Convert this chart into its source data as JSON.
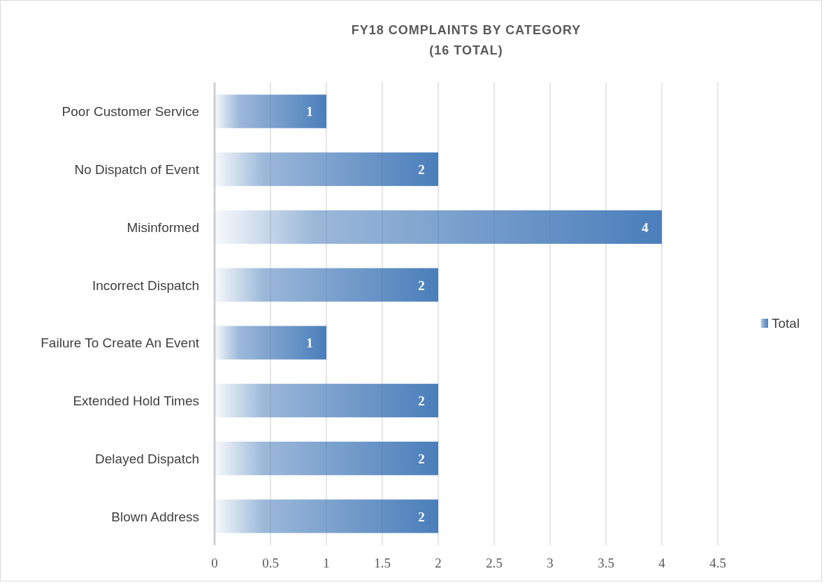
{
  "chart_data": {
    "type": "bar",
    "orientation": "horizontal",
    "title": "FY18 COMPLAINTS BY CATEGORY\n(16 TOTAL)",
    "categories": [
      "Poor Customer Service",
      "No Dispatch of Event",
      "Misinformed",
      "Incorrect Dispatch",
      "Failure To Create An Event",
      "Extended Hold Times",
      "Delayed Dispatch",
      "Blown Address"
    ],
    "series": [
      {
        "name": "Total",
        "color": "#4a7ebb",
        "values": [
          1,
          2,
          4,
          2,
          1,
          2,
          2,
          2
        ]
      }
    ],
    "xlim": [
      0,
      4.5
    ],
    "xticks": [
      0,
      0.5,
      1,
      1.5,
      2,
      2.5,
      3,
      3.5,
      4,
      4.5
    ],
    "grid": "x",
    "legend": "right",
    "data_labels": true
  }
}
